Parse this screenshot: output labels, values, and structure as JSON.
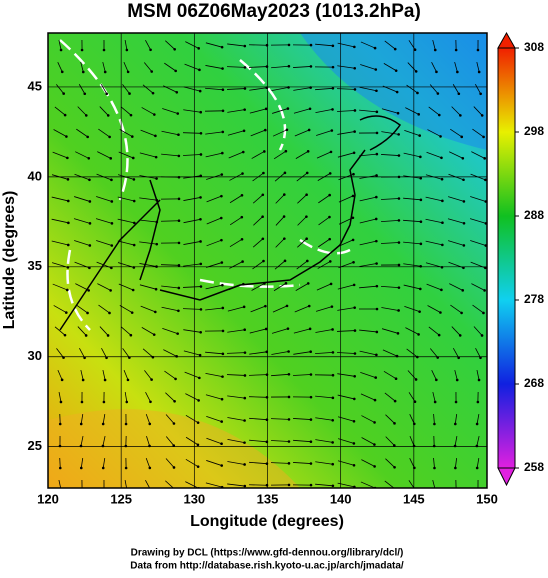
{
  "chart_data": {
    "type": "field",
    "title": "MSM 06Z06May2023 (1013.2hPa)",
    "xlabel": "Longitude (degrees)",
    "ylabel": "Latitude  (degrees)",
    "xlim": [
      120,
      150
    ],
    "xticks": [
      120,
      125,
      130,
      135,
      140,
      145,
      150
    ],
    "ylim": [
      22.7,
      48
    ],
    "yticks": [
      25,
      30,
      35,
      40,
      45
    ],
    "colorbar": {
      "lim": [
        258,
        308
      ],
      "ticks": [
        258,
        268,
        278,
        288,
        298,
        308
      ],
      "colors": [
        "#e020e0",
        "#1020e0",
        "#10d0f0",
        "#10c020",
        "#e8f000",
        "#f02000"
      ]
    },
    "footer": [
      "Drawing by DCL (https://www.gfd-dennou.org/library/dcl/)",
      "Data from http://database.rish.kyoto-u.ac.jp/arch/jmadata/"
    ]
  }
}
